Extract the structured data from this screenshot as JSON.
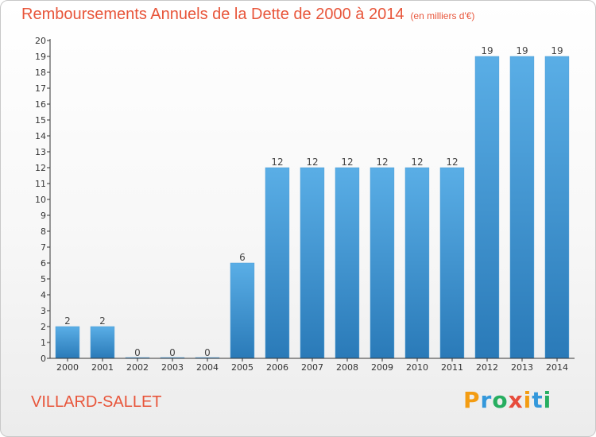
{
  "title": "Remboursements Annuels de la Dette de 2000 à 2014",
  "subtitle": "(en milliers d'€)",
  "commune": "VILLARD-SALLET",
  "logo": {
    "text": "Proxiti",
    "letters": [
      {
        "ch": "P",
        "color": "#f39c12"
      },
      {
        "ch": "r",
        "color": "#3498db"
      },
      {
        "ch": "o",
        "color": "#27ae60"
      },
      {
        "ch": "x",
        "color": "#e74c3c"
      },
      {
        "ch": "i",
        "color": "#f39c12"
      },
      {
        "ch": "t",
        "color": "#3498db"
      },
      {
        "ch": "i",
        "color": "#27ae60"
      }
    ]
  },
  "colors": {
    "title": "#e8553a",
    "bar_top": "#5aaee6",
    "bar_bottom": "#2a7ab8"
  },
  "chart_data": {
    "type": "bar",
    "title": "Remboursements Annuels de la Dette de 2000 à 2014",
    "subtitle": "(en milliers d'€)",
    "categories": [
      "2000",
      "2001",
      "2002",
      "2003",
      "2004",
      "2005",
      "2006",
      "2007",
      "2008",
      "2009",
      "2010",
      "2011",
      "2012",
      "2013",
      "2014"
    ],
    "values": [
      2,
      2,
      0,
      0,
      0,
      6,
      12,
      12,
      12,
      12,
      12,
      12,
      19,
      19,
      19
    ],
    "ylim": [
      0,
      20
    ],
    "yticks": [
      0,
      1,
      2,
      3,
      4,
      5,
      6,
      7,
      8,
      9,
      10,
      11,
      12,
      13,
      14,
      15,
      16,
      17,
      18,
      19,
      20
    ],
    "grid": false,
    "legend": "none"
  }
}
